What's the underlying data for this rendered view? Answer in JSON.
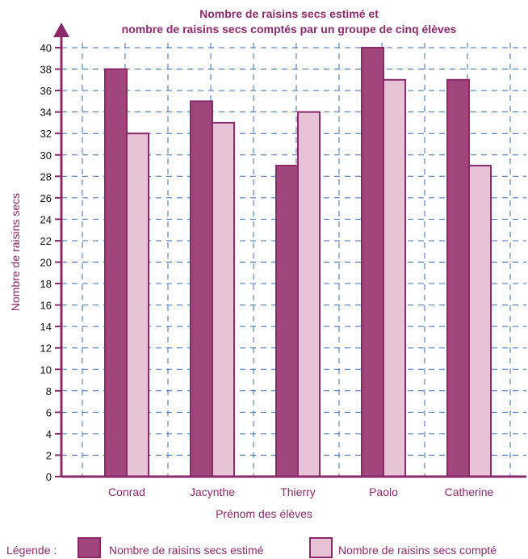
{
  "chart_data": {
    "type": "bar",
    "title_line1": "Nombre de raisins secs estimé et",
    "title_line2": "nombre de raisins secs comptés par un groupe de cinq élèves",
    "xlabel": "Prénom des élèves",
    "ylabel": "Nombre de raisins secs",
    "categories": [
      "Conrad",
      "Jacynthe",
      "Thierry",
      "Paolo",
      "Catherine"
    ],
    "series": [
      {
        "name": "Nombre de raisins secs estimé",
        "color": "#a1467d",
        "values": [
          38,
          35,
          29,
          40,
          37
        ]
      },
      {
        "name": "Nombre de raisins secs compté",
        "color": "#e8c2d6",
        "values": [
          32,
          33,
          34,
          37,
          29
        ]
      }
    ],
    "ylim": [
      0,
      40
    ],
    "ytick_step": 2,
    "grid": true,
    "legend_title": "Légende :",
    "legend_position": "bottom",
    "axis_color": "#8b2a6b",
    "grid_color": "#3b6fb6"
  }
}
